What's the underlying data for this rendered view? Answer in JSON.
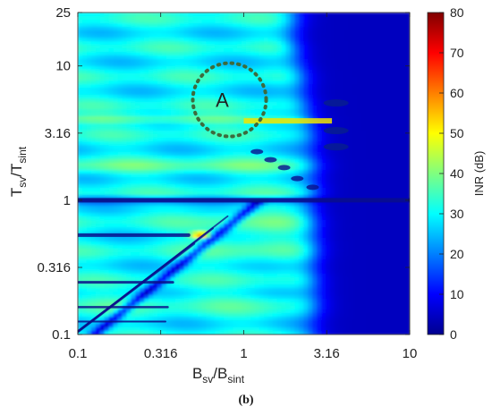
{
  "chart_data": {
    "type": "heatmap",
    "title": "",
    "xlabel": "B_sv/B_sint",
    "ylabel": "T_sv/T_sint",
    "xlabel_parts": {
      "main": "B",
      "sub1": "sv",
      "slash": "/B",
      "sub2": "sint"
    },
    "ylabel_parts": {
      "main": "T",
      "sub1": "sv",
      "slash": "/T",
      "sub2": "sint"
    },
    "x_scale": "log",
    "y_scale": "log",
    "xlim": [
      0.1,
      10
    ],
    "ylim": [
      0.1,
      25
    ],
    "x_ticks": [
      0.1,
      0.316,
      1,
      3.16,
      10
    ],
    "x_tick_labels": [
      "0.1",
      "0.316",
      "1",
      "3.16",
      "10"
    ],
    "y_ticks": [
      0.1,
      0.316,
      1,
      3.16,
      10,
      25
    ],
    "y_tick_labels": [
      "0.1",
      "0.316",
      "1",
      "3.16",
      "10",
      "25"
    ],
    "colorbar": {
      "label": "INR (dB)",
      "range": [
        0,
        80
      ],
      "ticks": [
        0,
        10,
        20,
        30,
        40,
        50,
        60,
        70,
        80
      ],
      "tick_labels": [
        "0",
        "10",
        "20",
        "30",
        "40",
        "50",
        "60",
        "70",
        "80"
      ],
      "colormap": "jet"
    },
    "annotation": {
      "label": "A",
      "shape": "dotted-circle",
      "center": [
        0.82,
        5.6
      ],
      "color": "#3d6b3d"
    },
    "regions": {
      "background_inr_db": 30,
      "low_inr_region": {
        "x_from": 3.16,
        "x_to": 10,
        "inr_db": 5
      },
      "peak": {
        "x": 0.55,
        "y": 0.55,
        "inr_db": 62
      },
      "bright_band_y": 4.0,
      "dark_band_y": 1.0
    }
  },
  "figure": {
    "caption": "(b)"
  }
}
